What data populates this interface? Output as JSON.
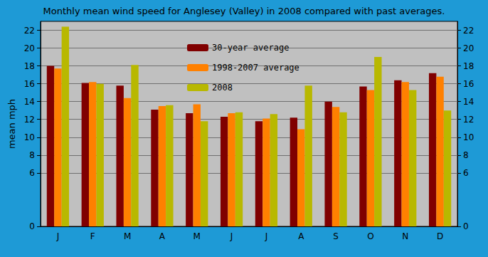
{
  "chart_data": {
    "type": "bar",
    "title": "Monthly mean wind speed for Anglesey (Valley) in 2008 compared with past averages.",
    "y_label": "mean mph",
    "categories": [
      "J",
      "F",
      "M",
      "A",
      "M",
      "J",
      "J",
      "A",
      "S",
      "O",
      "N",
      "D"
    ],
    "series": [
      {
        "name": "30-year average",
        "color": "#800000",
        "values": [
          18.0,
          16.1,
          15.8,
          13.1,
          12.7,
          12.3,
          11.8,
          12.2,
          14.0,
          15.7,
          16.4,
          17.2
        ]
      },
      {
        "name": "1998-2007 average",
        "color": "#ff8000",
        "values": [
          17.7,
          16.2,
          14.4,
          13.5,
          13.7,
          12.7,
          12.1,
          10.9,
          13.4,
          15.3,
          16.2,
          16.8
        ]
      },
      {
        "name": "2008",
        "color": "#b8b800",
        "values": [
          22.4,
          16.0,
          18.1,
          13.6,
          11.8,
          12.8,
          12.6,
          15.8,
          12.8,
          19.0,
          15.3,
          13.0
        ]
      }
    ],
    "ylim": [
      0,
      23
    ],
    "yticks": [
      0,
      6,
      8,
      10,
      12,
      14,
      16,
      18,
      20,
      22
    ],
    "grid": true,
    "legend": "top"
  }
}
